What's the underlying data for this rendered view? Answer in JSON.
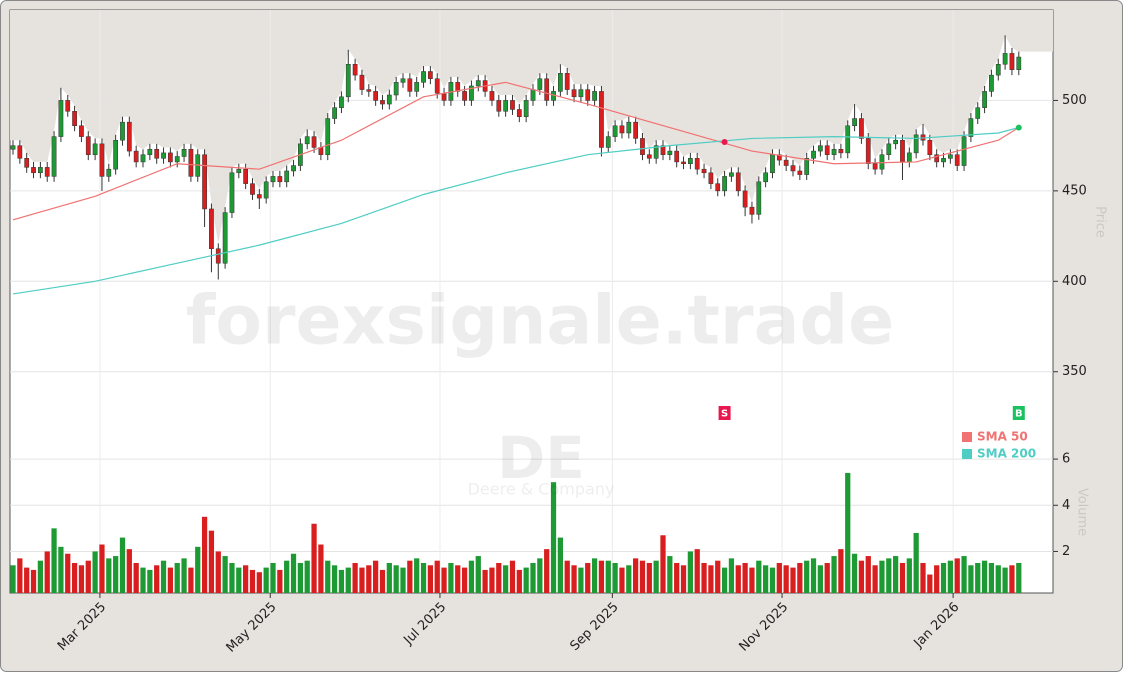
{
  "chart_data": {
    "type": "candlestick",
    "watermark": "forexsignale.trade",
    "ticker": "DE",
    "company": "Deere & Company",
    "y_label": "Price",
    "volume_label": "Volume",
    "open": [
      473,
      475,
      468,
      463,
      460,
      463,
      458,
      480,
      500,
      494,
      486,
      480,
      470,
      476,
      458,
      462,
      478,
      488,
      472,
      466,
      470,
      473,
      468,
      471,
      466,
      469,
      473,
      458,
      470,
      440,
      418,
      410,
      438,
      460,
      462,
      454,
      448,
      446,
      455,
      458,
      455,
      461,
      464,
      476,
      480,
      474,
      470,
      490,
      496,
      502,
      520,
      514,
      506,
      505,
      500,
      498,
      503,
      510,
      512,
      505,
      510,
      516,
      512,
      504,
      500,
      510,
      505,
      500,
      508,
      511,
      505,
      500,
      494,
      500,
      495,
      491,
      500,
      506,
      512,
      500,
      505,
      515,
      506,
      502,
      506,
      500,
      505,
      474,
      480,
      486,
      482,
      488,
      479,
      470,
      468,
      475,
      470,
      472,
      466,
      465,
      468,
      462,
      460,
      454,
      450,
      458,
      460,
      450,
      441,
      437,
      455,
      460,
      470,
      467,
      464,
      461,
      459,
      468,
      472,
      475,
      470,
      473,
      471,
      486,
      490,
      479,
      465,
      462,
      470,
      476,
      478,
      466,
      471,
      481,
      478,
      470,
      466,
      468,
      470,
      464,
      480,
      490,
      496,
      505,
      514,
      520,
      526,
      517
    ],
    "high": [
      478,
      478,
      471,
      466,
      466,
      466,
      483,
      507,
      503,
      497,
      489,
      483,
      479,
      479,
      465,
      481,
      491,
      491,
      475,
      473,
      476,
      476,
      474,
      474,
      472,
      476,
      476,
      473,
      473,
      443,
      421,
      441,
      463,
      465,
      465,
      457,
      451,
      458,
      461,
      461,
      464,
      467,
      479,
      484,
      483,
      477,
      493,
      499,
      505,
      528,
      523,
      517,
      509,
      508,
      503,
      506,
      513,
      515,
      515,
      513,
      519,
      519,
      515,
      507,
      513,
      513,
      508,
      511,
      514,
      514,
      508,
      503,
      503,
      503,
      498,
      503,
      509,
      515,
      515,
      508,
      520,
      518,
      509,
      509,
      509,
      508,
      508,
      483,
      489,
      489,
      491,
      491,
      482,
      473,
      478,
      478,
      475,
      475,
      469,
      471,
      471,
      465,
      463,
      457,
      461,
      463,
      463,
      453,
      444,
      458,
      463,
      473,
      473,
      470,
      467,
      464,
      471,
      475,
      478,
      478,
      476,
      476,
      489,
      498,
      493,
      482,
      468,
      473,
      479,
      481,
      481,
      474,
      484,
      487,
      481,
      473,
      471,
      473,
      473,
      483,
      493,
      499,
      508,
      517,
      523,
      536,
      529,
      527
    ],
    "low": [
      470,
      465,
      460,
      457,
      457,
      455,
      455,
      477,
      491,
      483,
      477,
      467,
      467,
      450,
      455,
      459,
      475,
      469,
      463,
      463,
      467,
      465,
      465,
      463,
      463,
      466,
      455,
      455,
      430,
      405,
      401,
      407,
      435,
      457,
      451,
      445,
      440,
      443,
      452,
      452,
      452,
      458,
      461,
      473,
      471,
      467,
      467,
      487,
      493,
      499,
      511,
      503,
      502,
      497,
      495,
      495,
      500,
      507,
      502,
      502,
      507,
      509,
      501,
      497,
      497,
      502,
      497,
      497,
      505,
      502,
      497,
      491,
      491,
      492,
      488,
      488,
      497,
      503,
      497,
      497,
      502,
      503,
      499,
      499,
      497,
      497,
      469,
      471,
      477,
      479,
      479,
      476,
      467,
      465,
      465,
      467,
      467,
      463,
      462,
      462,
      459,
      457,
      451,
      447,
      447,
      455,
      447,
      436,
      432,
      434,
      452,
      457,
      464,
      461,
      458,
      456,
      456,
      465,
      469,
      467,
      467,
      468,
      468,
      483,
      476,
      462,
      459,
      459,
      467,
      473,
      456,
      463,
      468,
      475,
      467,
      463,
      463,
      465,
      461,
      461,
      477,
      487,
      493,
      502,
      511,
      517,
      514,
      514
    ],
    "close": [
      475,
      468,
      463,
      460,
      463,
      458,
      480,
      500,
      494,
      486,
      480,
      470,
      476,
      458,
      462,
      478,
      488,
      472,
      466,
      470,
      473,
      468,
      471,
      466,
      469,
      473,
      458,
      470,
      440,
      418,
      410,
      438,
      460,
      462,
      454,
      448,
      446,
      455,
      458,
      455,
      461,
      464,
      476,
      480,
      474,
      470,
      490,
      496,
      502,
      520,
      514,
      506,
      505,
      500,
      498,
      503,
      510,
      512,
      505,
      510,
      516,
      512,
      504,
      500,
      510,
      505,
      500,
      508,
      511,
      505,
      500,
      494,
      500,
      495,
      491,
      500,
      506,
      512,
      500,
      505,
      515,
      506,
      502,
      506,
      500,
      505,
      474,
      480,
      486,
      482,
      488,
      479,
      470,
      468,
      475,
      470,
      472,
      466,
      465,
      468,
      462,
      460,
      454,
      450,
      458,
      460,
      450,
      441,
      437,
      455,
      460,
      470,
      467,
      464,
      461,
      459,
      468,
      472,
      475,
      470,
      473,
      471,
      486,
      490,
      479,
      465,
      462,
      470,
      476,
      478,
      466,
      471,
      481,
      478,
      470,
      466,
      468,
      470,
      464,
      480,
      490,
      496,
      505,
      514,
      520,
      526,
      517,
      524
    ],
    "volume": [
      1.4,
      1.7,
      1.3,
      1.2,
      1.6,
      2.0,
      3.0,
      2.2,
      1.9,
      1.5,
      1.4,
      1.6,
      2.0,
      2.3,
      1.7,
      1.8,
      2.6,
      2.1,
      1.5,
      1.3,
      1.2,
      1.4,
      1.6,
      1.3,
      1.5,
      1.7,
      1.3,
      2.2,
      3.5,
      2.9,
      2.0,
      1.8,
      1.5,
      1.3,
      1.4,
      1.2,
      1.1,
      1.3,
      1.5,
      1.2,
      1.6,
      1.9,
      1.5,
      1.6,
      3.2,
      2.3,
      1.6,
      1.4,
      1.2,
      1.3,
      1.5,
      1.3,
      1.4,
      1.6,
      1.2,
      1.5,
      1.4,
      1.3,
      1.6,
      1.7,
      1.5,
      1.4,
      1.6,
      1.3,
      1.5,
      1.4,
      1.3,
      1.6,
      1.8,
      1.2,
      1.3,
      1.5,
      1.4,
      1.6,
      1.2,
      1.3,
      1.5,
      1.7,
      2.1,
      5.0,
      2.6,
      1.6,
      1.4,
      1.3,
      1.5,
      1.7,
      1.6,
      1.6,
      1.5,
      1.3,
      1.4,
      1.7,
      1.6,
      1.5,
      1.6,
      2.7,
      1.8,
      1.5,
      1.4,
      2.0,
      2.1,
      1.5,
      1.4,
      1.6,
      1.3,
      1.7,
      1.4,
      1.5,
      1.3,
      1.6,
      1.4,
      1.3,
      1.5,
      1.4,
      1.3,
      1.5,
      1.6,
      1.7,
      1.4,
      1.5,
      1.8,
      2.1,
      5.4,
      1.9,
      1.6,
      1.8,
      1.4,
      1.6,
      1.7,
      1.8,
      1.5,
      1.7,
      2.8,
      1.5,
      1.0,
      1.4,
      1.5,
      1.6,
      1.7,
      1.8,
      1.4,
      1.5,
      1.6,
      1.5,
      1.4,
      1.3,
      1.4,
      1.5
    ],
    "up_color": "#1e9a34",
    "down_color": "#d81e1e",
    "xlim": [
      -0.44,
      152
    ],
    "xticks": [
      {
        "value": 12.7,
        "label": "Mar 2025"
      },
      {
        "value": 37.6,
        "label": "May 2025"
      },
      {
        "value": 62.4,
        "label": "Jul 2025"
      },
      {
        "value": 87.6,
        "label": "Sep 2025"
      },
      {
        "value": 112.4,
        "label": "Nov 2025"
      },
      {
        "value": 137.4,
        "label": "Jan 2026"
      }
    ],
    "ylim": [
      320,
      550
    ],
    "yticks": [
      350,
      400,
      450,
      500
    ],
    "volume_ylim": [
      0.2,
      7
    ],
    "volume_yticks": [
      2,
      4,
      6
    ],
    "grid": true,
    "legend": "right",
    "series": [
      {
        "name": "SMA 50",
        "color": "#f07272",
        "x": [
          0,
          12,
          24,
          36,
          48,
          60,
          72,
          84,
          96,
          108,
          120,
          132,
          144,
          147
        ],
        "values": [
          434,
          447,
          465,
          462,
          478,
          502,
          510,
          498,
          485,
          472,
          465,
          466,
          478,
          485
        ]
      },
      {
        "name": "SMA 200",
        "color": "#4ecdc4",
        "x": [
          0,
          12,
          24,
          36,
          48,
          60,
          72,
          84,
          96,
          108,
          120,
          132,
          144,
          147
        ],
        "values": [
          393,
          400,
          410,
          420,
          432,
          448,
          460,
          470,
          475,
          479,
          480,
          479,
          482,
          485
        ]
      }
    ],
    "signals": [
      {
        "label": "S",
        "x": 104,
        "value": 477,
        "color": "#e8174d"
      },
      {
        "label": "B",
        "x": 147,
        "value": 485,
        "color": "#19c15f"
      }
    ]
  }
}
